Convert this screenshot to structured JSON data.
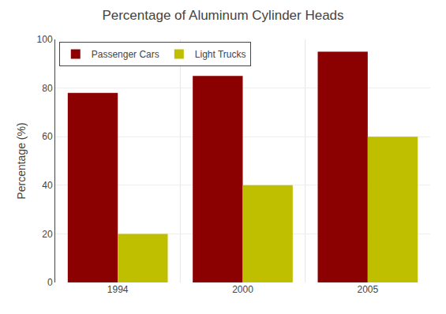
{
  "chart_data": {
    "type": "bar",
    "title": "Percentage of Aluminum Cylinder Heads",
    "ylabel": "Percentage (%)",
    "categories": [
      "1994",
      "2000",
      "2005"
    ],
    "series": [
      {
        "name": "Passenger Cars",
        "color": "#8B0000",
        "values": [
          78,
          85,
          95
        ]
      },
      {
        "name": "Light Trucks",
        "color": "#BFBF00",
        "values": [
          20,
          40,
          60
        ]
      }
    ],
    "ylim": [
      0,
      100
    ],
    "yticks": [
      0,
      20,
      40,
      60,
      80,
      100
    ],
    "grid": true,
    "legend": "upper left"
  }
}
